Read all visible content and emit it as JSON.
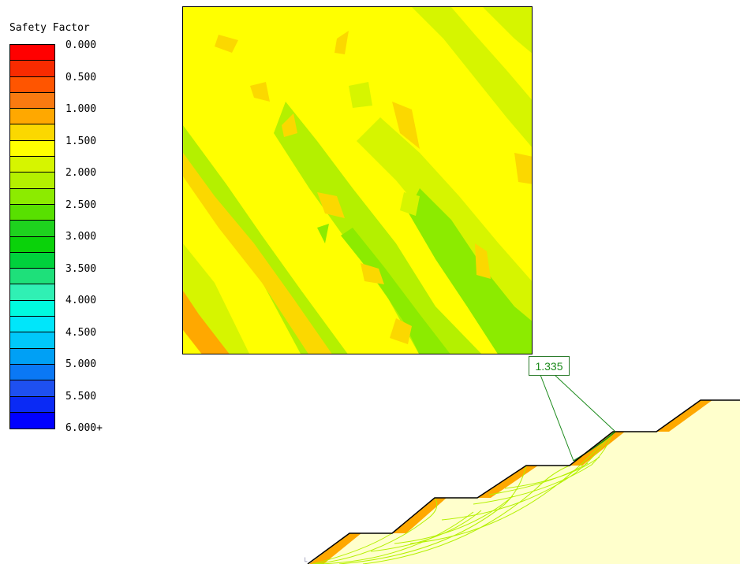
{
  "legend": {
    "title": "Safety Factor",
    "ticks": [
      "0.000",
      "0.500",
      "1.000",
      "1.500",
      "2.000",
      "2.500",
      "3.000",
      "3.500",
      "4.000",
      "4.500",
      "5.000",
      "5.500",
      "6.000+"
    ],
    "colors": [
      "#ff0000",
      "#f82b00",
      "#ff5500",
      "#f97a10",
      "#ffa800",
      "#fbd800",
      "#ffff00",
      "#d6f500",
      "#b4f000",
      "#8ceb00",
      "#58e000",
      "#1ed21e",
      "#0ad20a",
      "#00d23c",
      "#1ee07a",
      "#30f0b4",
      "#00fadf",
      "#00e6fa",
      "#00c8fa",
      "#00a0f5",
      "#0a78f5",
      "#1e50f0",
      "#0a2af5",
      "#0000ff"
    ]
  },
  "grid_colors": {
    "base": "#ffff00",
    "light_green": "#d6f500",
    "green": "#b4f000",
    "mid_green": "#8ceb00",
    "orange": "#fbd800",
    "dark_orange": "#ffa800"
  },
  "critical_surface": {
    "safety_factor_label": "1.335",
    "callout_color": "#1c8a1c"
  },
  "slope_colors": {
    "soil": "#ffffcc",
    "outline": "#000000",
    "slip_surfaces": "#b4f000"
  }
}
